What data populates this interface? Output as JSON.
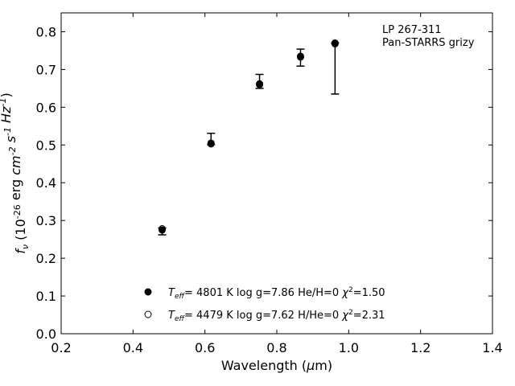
{
  "chart_data": {
    "type": "scatter",
    "xlabel": "Wavelength (μm)",
    "ylabel": "f_ν (10^-26 erg cm^-2 s^-1 Hz^-1)",
    "xlim": [
      0.2,
      1.4
    ],
    "ylim": [
      0.0,
      0.85
    ],
    "xticks": [
      0.2,
      0.4,
      0.6,
      0.8,
      1.0,
      1.2,
      1.4
    ],
    "xtick_labels": [
      "0.2",
      "0.4",
      "0.6",
      "0.8",
      "1.0",
      "1.2",
      "1.4"
    ],
    "yticks": [
      0.0,
      0.1,
      0.2,
      0.3,
      0.4,
      0.5,
      0.6,
      0.7,
      0.8
    ],
    "ytick_labels": [
      "0.0",
      "0.1",
      "0.2",
      "0.3",
      "0.4",
      "0.5",
      "0.6",
      "0.7",
      "0.8"
    ],
    "annotation": [
      "LP 267-311",
      "Pan-STARRS grizy"
    ],
    "observed": {
      "x": [
        0.481,
        0.617,
        0.752,
        0.866,
        0.962
      ],
      "y": [
        0.274,
        0.511,
        0.667,
        0.73,
        0.768
      ],
      "yerr_low": [
        0.012,
        0.01,
        0.017,
        0.021,
        0.133
      ],
      "yerr_high": [
        0.006,
        0.02,
        0.02,
        0.024,
        0.002
      ]
    },
    "series": [
      {
        "marker": "filled",
        "x": [
          0.481,
          0.617,
          0.752,
          0.866,
          0.962
        ],
        "y": [
          0.275,
          0.505,
          0.662,
          0.735,
          0.77
        ],
        "label": {
          "teff_sym": "T",
          "teff_sub": "eff",
          "rest": "=  4801 K  log g=7.86  He/H=0  ",
          "chi_sym": "χ",
          "chi_sup": "2",
          "chi_val": "=1.50"
        }
      },
      {
        "marker": "open",
        "x": [
          0.481,
          0.617,
          0.752,
          0.866,
          0.962
        ],
        "y": [
          0.278,
          0.503,
          0.66,
          0.733,
          0.768
        ],
        "label": {
          "teff_sym": "T",
          "teff_sub": "eff",
          "rest": "=  4479 K  log g=7.62  H/He=0  ",
          "chi_sym": "χ",
          "chi_sup": "2",
          "chi_val": "=2.31"
        }
      }
    ]
  }
}
